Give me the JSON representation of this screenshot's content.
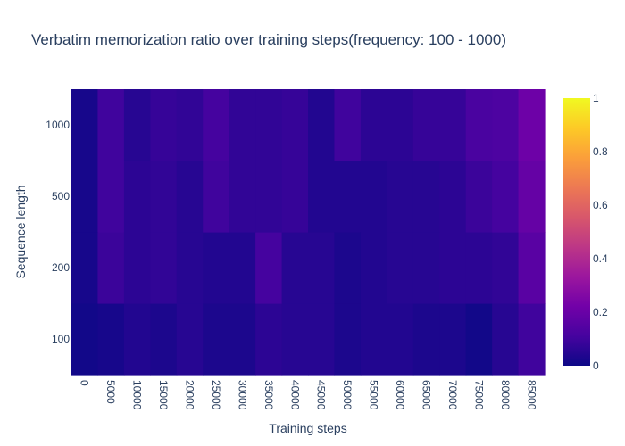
{
  "chart_data": {
    "type": "heatmap",
    "title": "Verbatim memorization ratio over training steps(frequency: 100 - 1000)",
    "xlabel": "Training steps",
    "ylabel": "Sequence length",
    "x": [
      "0",
      "5000",
      "10000",
      "15000",
      "20000",
      "25000",
      "30000",
      "35000",
      "40000",
      "45000",
      "50000",
      "55000",
      "60000",
      "65000",
      "70000",
      "75000",
      "80000",
      "85000"
    ],
    "y": [
      "100",
      "200",
      "500",
      "1000"
    ],
    "z": [
      [
        0.01,
        0.02,
        0.04,
        0.03,
        0.05,
        0.03,
        0.03,
        0.06,
        0.05,
        0.05,
        0.03,
        0.04,
        0.04,
        0.03,
        0.03,
        0.01,
        0.05,
        0.1
      ],
      [
        0.02,
        0.09,
        0.06,
        0.07,
        0.05,
        0.04,
        0.04,
        0.11,
        0.05,
        0.05,
        0.03,
        0.04,
        0.05,
        0.05,
        0.06,
        0.06,
        0.07,
        0.16
      ],
      [
        0.02,
        0.1,
        0.06,
        0.07,
        0.05,
        0.1,
        0.07,
        0.07,
        0.08,
        0.04,
        0.04,
        0.04,
        0.05,
        0.05,
        0.06,
        0.09,
        0.11,
        0.19
      ],
      [
        0.02,
        0.1,
        0.05,
        0.08,
        0.07,
        0.11,
        0.07,
        0.07,
        0.08,
        0.04,
        0.1,
        0.06,
        0.06,
        0.08,
        0.08,
        0.12,
        0.13,
        0.21
      ]
    ],
    "zlim": [
      0,
      1
    ],
    "colorbar_ticks": [
      0,
      0.2,
      0.4,
      0.6,
      0.8,
      1
    ],
    "colorscale": [
      "#0d0887",
      "#46039f",
      "#7201a8",
      "#9c179e",
      "#bd3786",
      "#d8576b",
      "#ed7953",
      "#fb9f3a",
      "#fdca26",
      "#f0f921"
    ],
    "grid": false
  }
}
